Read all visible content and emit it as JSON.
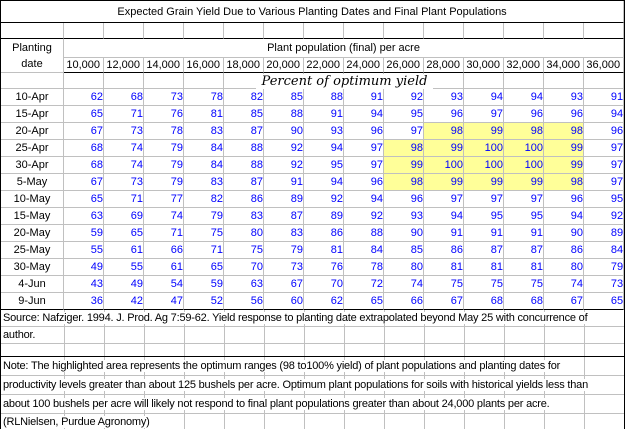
{
  "title": "Expected Grain Yield Due to Various Planting Dates and Final Plant Populations",
  "table": {
    "corner": {
      "line1": "Planting",
      "line2": "date"
    },
    "population_header": "Plant population (final) per acre",
    "population_columns": [
      "10,000",
      "12,000",
      "14,000",
      "16,000",
      "18,000",
      "20,000",
      "22,000",
      "24,000",
      "26,000",
      "28,000",
      "30,000",
      "32,000",
      "34,000",
      "36,000"
    ],
    "subheader": "Percent of optimum yield",
    "rows": [
      {
        "date": "10-Apr",
        "values": [
          62,
          68,
          73,
          78,
          82,
          85,
          88,
          91,
          92,
          93,
          94,
          94,
          93,
          91
        ]
      },
      {
        "date": "15-Apr",
        "values": [
          65,
          71,
          76,
          81,
          85,
          88,
          91,
          94,
          95,
          96,
          97,
          96,
          96,
          94
        ]
      },
      {
        "date": "20-Apr",
        "values": [
          67,
          73,
          78,
          83,
          87,
          90,
          93,
          96,
          97,
          98,
          99,
          98,
          98,
          96
        ],
        "highlight": [
          9,
          12
        ]
      },
      {
        "date": "25-Apr",
        "values": [
          68,
          74,
          79,
          84,
          88,
          92,
          94,
          97,
          98,
          99,
          100,
          100,
          99,
          97
        ],
        "highlight": [
          8,
          12
        ]
      },
      {
        "date": "30-Apr",
        "values": [
          68,
          74,
          79,
          84,
          88,
          92,
          95,
          97,
          99,
          100,
          100,
          100,
          99,
          97
        ],
        "highlight": [
          8,
          12
        ]
      },
      {
        "date": "5-May",
        "values": [
          67,
          73,
          79,
          83,
          87,
          91,
          94,
          96,
          98,
          99,
          99,
          99,
          98,
          97
        ],
        "highlight": [
          8,
          12
        ]
      },
      {
        "date": "10-May",
        "values": [
          65,
          71,
          77,
          82,
          86,
          89,
          92,
          94,
          96,
          97,
          97,
          97,
          96,
          95
        ]
      },
      {
        "date": "15-May",
        "values": [
          63,
          69,
          74,
          79,
          83,
          87,
          89,
          92,
          93,
          94,
          95,
          95,
          94,
          92
        ]
      },
      {
        "date": "20-May",
        "values": [
          59,
          65,
          71,
          75,
          80,
          83,
          86,
          88,
          90,
          91,
          91,
          91,
          90,
          89
        ]
      },
      {
        "date": "25-May",
        "values": [
          55,
          61,
          66,
          71,
          75,
          79,
          81,
          84,
          85,
          86,
          87,
          87,
          86,
          84
        ]
      },
      {
        "date": "30-May",
        "values": [
          49,
          55,
          61,
          65,
          70,
          73,
          76,
          78,
          80,
          81,
          81,
          81,
          80,
          79
        ]
      },
      {
        "date": "4-Jun",
        "values": [
          43,
          49,
          54,
          59,
          63,
          67,
          70,
          72,
          74,
          75,
          75,
          75,
          74,
          73
        ]
      },
      {
        "date": "9-Jun",
        "values": [
          36,
          42,
          47,
          52,
          56,
          60,
          62,
          65,
          66,
          67,
          68,
          68,
          67,
          65
        ]
      }
    ]
  },
  "footer": {
    "source_line1": "Source: Nafziger. 1994. J. Prod. Ag 7:59-62. Yield response to planting date extrapolated beyond May 25 with concurrence of",
    "source_line2": "author.",
    "note_line1": "Note: The highlighted area represents the optimum ranges (98 to100% yield) of plant populations and planting dates for",
    "note_line2": "productivity levels greater than about 125 bushels per acre. Optimum plant populations for soils with historical yields less than",
    "note_line3": "about 100 bushels per acre will likely not respond to final plant populations greater than about 24,000 plants per acre.",
    "note_line4": "(RLNielsen, Purdue Agronomy)"
  },
  "colors": {
    "highlight_fill": "#ffff99",
    "value_text": "#0000ff",
    "gridline": "#c0c0c0",
    "border": "#000000"
  }
}
